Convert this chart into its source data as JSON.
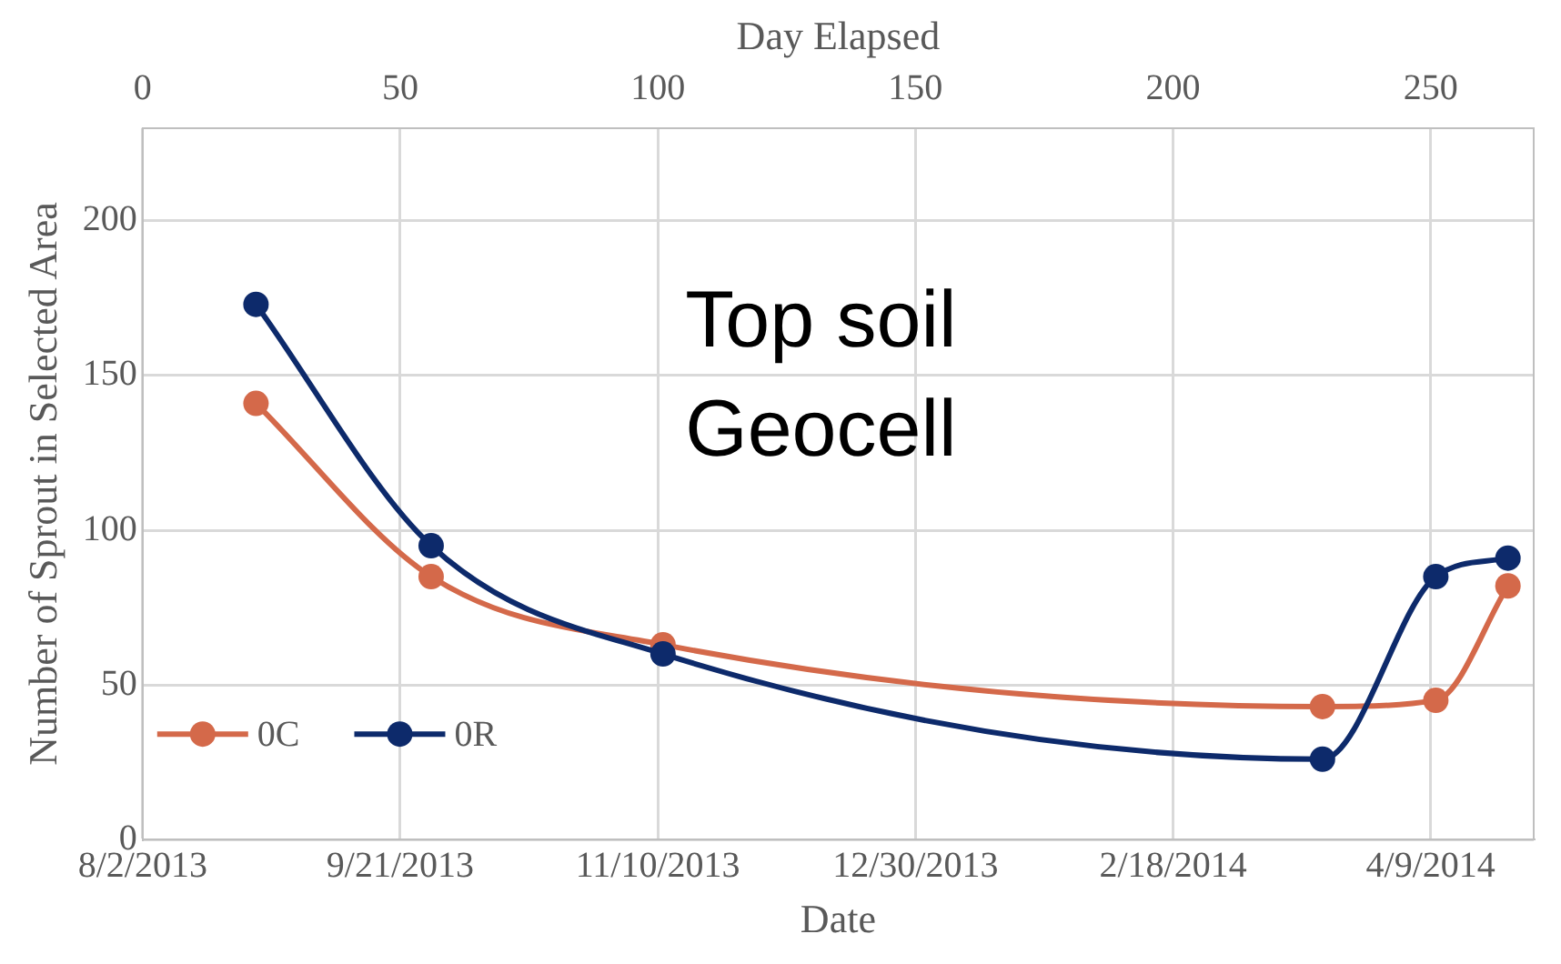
{
  "chart_data": {
    "type": "line",
    "xlabel": "Date",
    "x2label": "Day Elapsed",
    "ylabel": "Number of Sprout in Selected Area",
    "annotations": [
      "Top soil",
      "Geocell"
    ],
    "x": [
      "2013-08-24",
      "2013-09-27",
      "2013-11-11",
      "2014-03-19",
      "2014-04-10",
      "2014-04-24"
    ],
    "series": [
      {
        "name": "0C",
        "color": "#d4694a",
        "values": [
          141,
          85,
          63,
          43,
          45,
          82
        ]
      },
      {
        "name": "0R",
        "color": "#0d2a6b",
        "values": [
          173,
          95,
          60,
          26,
          85,
          91
        ]
      }
    ],
    "xlim": [
      "2013-08-02",
      "2014-04-29"
    ],
    "xticks": [
      {
        "value": "2013-08-02",
        "label": "8/2/2013"
      },
      {
        "value": "2013-09-21",
        "label": "9/21/2013"
      },
      {
        "value": "2013-11-10",
        "label": "11/10/2013"
      },
      {
        "value": "2013-12-30",
        "label": "12/30/2013"
      },
      {
        "value": "2014-02-18",
        "label": "2/18/2014"
      },
      {
        "value": "2014-04-09",
        "label": "4/9/2014"
      }
    ],
    "x2lim": [
      0,
      270
    ],
    "x2ticks": [
      0,
      50,
      100,
      150,
      200,
      250
    ],
    "ylim": [
      0,
      230
    ],
    "yticks": [
      0,
      50,
      100,
      150,
      200
    ],
    "grid": true,
    "legend": "bottom left",
    "marker": "circle",
    "line_style": "solid"
  }
}
